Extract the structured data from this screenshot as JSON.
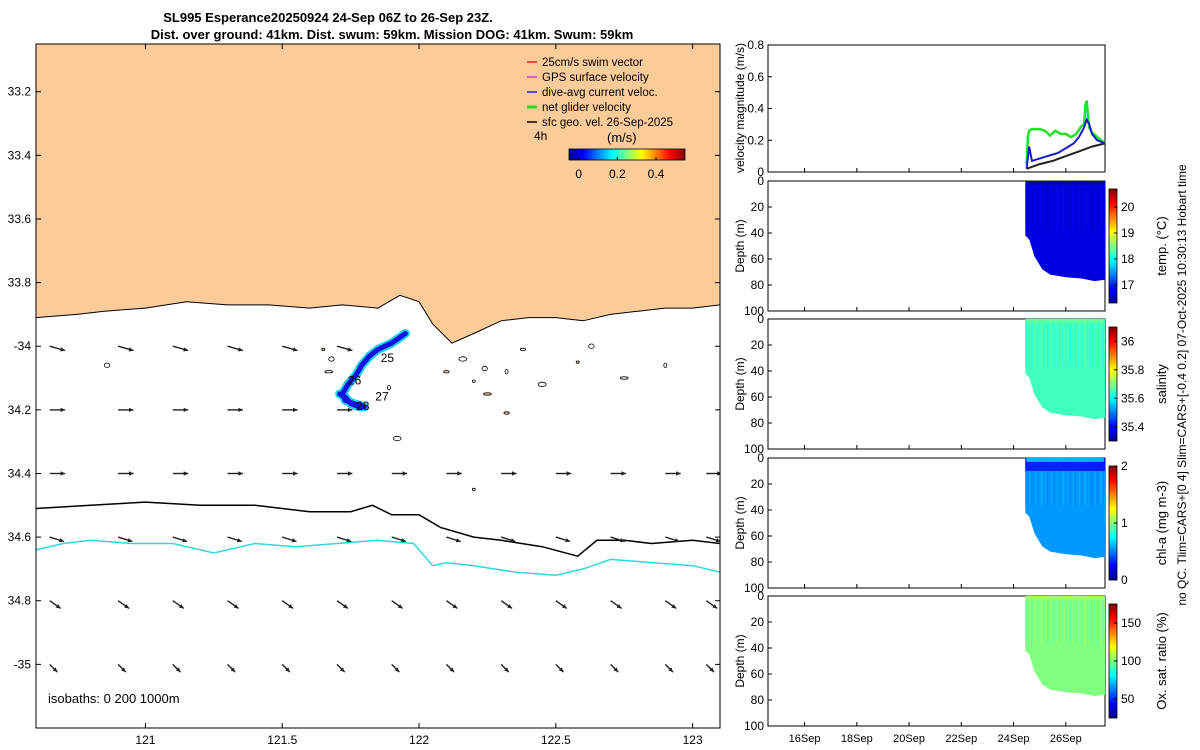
{
  "title": {
    "line1": "SL995 Esperance20250924 24-Sep 06Z to 26-Sep 23Z.",
    "line2": "Dist. over ground: 41km. Dist. swum: 59km. Mission DOG: 41km. Swum: 59km"
  },
  "side_note": "no QC. Tlim=CARS+[0 4] Slim=CARS+[-0.4 0.2] 07-Oct-2025 10:30:13 Hobart time",
  "colors": {
    "land": "#fbcb9a",
    "glider_track": "#1010e0",
    "isobath_200": "#000000",
    "isobath_1000": "#2fd8e0",
    "net_velocity": "#22e022",
    "dive_avg": "#1a1ad0",
    "sfc_geo": "#222222"
  },
  "chart_data": [
    {
      "type": "map",
      "xlim": [
        120.6,
        123.1
      ],
      "ylim": [
        -35.2,
        -33.05
      ],
      "xticks": [
        121,
        121.5,
        122,
        122.5,
        123
      ],
      "xtick_labels": [
        "121",
        "121.5",
        "122",
        "122.5",
        "123"
      ],
      "yticks": [
        -33.2,
        -33.4,
        -33.6,
        -33.8,
        -34,
        -34.2,
        -34.4,
        -34.6,
        -34.8,
        -35
      ],
      "ytick_labels": [
        "33.2",
        "33.4",
        "33.6",
        "33.8",
        "-34",
        "34.2",
        "34.4",
        "34.6",
        "34.8",
        "-35"
      ],
      "legend": {
        "placement": "top-right",
        "items": [
          {
            "label": "25cm/s swim vector",
            "color": "#e02020"
          },
          {
            "label": "GPS surface velocity",
            "color": "#e030e0"
          },
          {
            "label": "dive-avg current veloc.",
            "color": "#2020e0"
          },
          {
            "label": "net glider velocity",
            "color": "#20e020"
          },
          {
            "label": "sfc geo. vel. 26-Sep-2025",
            "color": "#000000"
          }
        ],
        "time_label": "4h"
      },
      "colorbar": {
        "title": "(m/s)",
        "range": [
          -0.05,
          0.55
        ],
        "ticks": [
          0,
          0.2,
          0.4
        ],
        "tick_labels": [
          "0",
          "0.2",
          "0.4"
        ]
      },
      "isobaths_label": "isobaths: 0   200  1000m",
      "track_day_labels": [
        {
          "text": "25",
          "lon": 121.86,
          "lat": -34.05
        },
        {
          "text": "26",
          "lon": 121.74,
          "lat": -34.12
        },
        {
          "text": "27",
          "lon": 121.84,
          "lat": -34.17
        },
        {
          "text": "28",
          "lon": 121.77,
          "lat": -34.2
        }
      ],
      "glider_track": [
        [
          121.95,
          -33.96
        ],
        [
          121.9,
          -33.99
        ],
        [
          121.85,
          -34.01
        ],
        [
          121.82,
          -34.03
        ],
        [
          121.79,
          -34.06
        ],
        [
          121.77,
          -34.09
        ],
        [
          121.74,
          -34.12
        ],
        [
          121.72,
          -34.15
        ],
        [
          121.73,
          -34.17
        ],
        [
          121.76,
          -34.18
        ],
        [
          121.8,
          -34.19
        ],
        [
          121.78,
          -34.19
        ],
        [
          121.75,
          -34.18
        ],
        [
          121.73,
          -34.16
        ],
        [
          121.71,
          -34.15
        ]
      ],
      "isobath_200": [
        [
          120.6,
          -34.51
        ],
        [
          120.8,
          -34.5
        ],
        [
          121,
          -34.49
        ],
        [
          121.2,
          -34.5
        ],
        [
          121.4,
          -34.5
        ],
        [
          121.6,
          -34.52
        ],
        [
          121.75,
          -34.52
        ],
        [
          121.83,
          -34.5
        ],
        [
          121.9,
          -34.53
        ],
        [
          122,
          -34.53
        ],
        [
          122.08,
          -34.57
        ],
        [
          122.2,
          -34.6
        ],
        [
          122.3,
          -34.61
        ],
        [
          122.45,
          -34.63
        ],
        [
          122.58,
          -34.66
        ],
        [
          122.65,
          -34.61
        ],
        [
          122.75,
          -34.61
        ],
        [
          122.85,
          -34.62
        ],
        [
          123,
          -34.61
        ],
        [
          123.1,
          -34.62
        ]
      ],
      "isobath_1000": [
        [
          120.6,
          -34.64
        ],
        [
          120.7,
          -34.62
        ],
        [
          120.8,
          -34.61
        ],
        [
          120.95,
          -34.62
        ],
        [
          121.1,
          -34.62
        ],
        [
          121.25,
          -34.65
        ],
        [
          121.4,
          -34.62
        ],
        [
          121.55,
          -34.63
        ],
        [
          121.7,
          -34.62
        ],
        [
          121.85,
          -34.61
        ],
        [
          121.98,
          -34.62
        ],
        [
          122.05,
          -34.69
        ],
        [
          122.1,
          -34.68
        ],
        [
          122.2,
          -34.69
        ],
        [
          122.35,
          -34.71
        ],
        [
          122.5,
          -34.72
        ],
        [
          122.6,
          -34.7
        ],
        [
          122.7,
          -34.67
        ],
        [
          122.85,
          -34.68
        ],
        [
          123,
          -34.69
        ],
        [
          123.1,
          -34.71
        ]
      ],
      "coastline": [
        [
          120.6,
          -33.91
        ],
        [
          120.75,
          -33.9
        ],
        [
          120.85,
          -33.89
        ],
        [
          121,
          -33.88
        ],
        [
          121.15,
          -33.86
        ],
        [
          121.3,
          -33.87
        ],
        [
          121.45,
          -33.87
        ],
        [
          121.6,
          -33.88
        ],
        [
          121.72,
          -33.87
        ],
        [
          121.85,
          -33.88
        ],
        [
          121.93,
          -33.84
        ],
        [
          122,
          -33.86
        ],
        [
          122.05,
          -33.93
        ],
        [
          122.12,
          -33.99
        ],
        [
          122.2,
          -33.96
        ],
        [
          122.3,
          -33.92
        ],
        [
          122.4,
          -33.91
        ],
        [
          122.5,
          -33.91
        ],
        [
          122.6,
          -33.92
        ],
        [
          122.7,
          -33.9
        ],
        [
          122.8,
          -33.89
        ],
        [
          122.9,
          -33.88
        ],
        [
          123,
          -33.88
        ],
        [
          123.1,
          -33.87
        ]
      ],
      "vector_rows": [
        {
          "lat": -34.0,
          "u": 0.14,
          "v": -0.04,
          "lons": [
            120.65,
            120.9,
            121.1,
            121.3,
            121.5,
            121.7
          ]
        },
        {
          "lat": -34.2,
          "u": 0.14,
          "v": 0.0,
          "lons": [
            120.65,
            120.9,
            121.1,
            121.3,
            121.5,
            121.7
          ]
        },
        {
          "lat": -34.4,
          "u": 0.14,
          "v": 0.0,
          "lons": [
            120.65,
            120.9,
            121.1,
            121.3,
            121.5,
            121.7,
            121.9,
            122.1,
            122.3,
            122.5,
            122.7,
            122.9,
            123.05
          ]
        },
        {
          "lat": -34.6,
          "u": 0.13,
          "v": -0.04,
          "lons": [
            120.65,
            120.9,
            121.1,
            121.3,
            121.5,
            121.7,
            121.9,
            122.1,
            122.3,
            122.5,
            122.7,
            122.9,
            123.05
          ]
        },
        {
          "lat": -34.8,
          "u": 0.1,
          "v": -0.07,
          "lons": [
            120.65,
            120.9,
            121.1,
            121.3,
            121.5,
            121.7,
            121.9,
            122.1,
            122.3,
            122.5,
            122.7,
            122.9,
            123.05
          ]
        },
        {
          "lat": -35.0,
          "u": 0.07,
          "v": -0.07,
          "lons": [
            120.65,
            120.9,
            121.1,
            121.3,
            121.5,
            121.7,
            121.9,
            122.1,
            122.3,
            122.5,
            122.7,
            122.9,
            123.05
          ]
        }
      ]
    },
    {
      "type": "line",
      "ylabel": "velocity magnitude (m/s)",
      "xlim": [
        14.6,
        27.5
      ],
      "ylim": [
        0,
        0.8
      ],
      "yticks": [
        0,
        0.2,
        0.4,
        0.6,
        0.8
      ],
      "ytick_labels": [
        "0",
        "0.2",
        "0.4",
        "0.6",
        "0.8"
      ],
      "series": [
        {
          "color": "#22e022",
          "x": [
            24.5,
            24.55,
            24.6,
            24.7,
            24.8,
            25,
            25.2,
            25.4,
            25.6,
            25.8,
            26,
            26.2,
            26.4,
            26.6,
            26.7,
            26.75,
            26.8,
            26.85,
            26.9,
            27,
            27.2,
            27.5
          ],
          "y": [
            0.05,
            0.22,
            0.26,
            0.27,
            0.27,
            0.27,
            0.26,
            0.23,
            0.26,
            0.24,
            0.24,
            0.22,
            0.24,
            0.29,
            0.3,
            0.42,
            0.45,
            0.35,
            0.28,
            0.25,
            0.22,
            0.18
          ]
        },
        {
          "color": "#1a1ad0",
          "x": [
            24.5,
            24.6,
            24.7,
            24.9,
            25.1,
            25.3,
            25.5,
            25.7,
            25.9,
            26.1,
            26.3,
            26.5,
            26.7,
            26.8,
            26.9,
            27,
            27.2,
            27.5
          ],
          "y": [
            0.02,
            0.16,
            0.07,
            0.08,
            0.09,
            0.1,
            0.11,
            0.12,
            0.14,
            0.16,
            0.18,
            0.22,
            0.28,
            0.33,
            0.3,
            0.24,
            0.2,
            0.18
          ]
        },
        {
          "color": "#222222",
          "x": [
            24.5,
            25,
            25.5,
            26,
            26.5,
            27,
            27.5
          ],
          "y": [
            0.02,
            0.05,
            0.07,
            0.1,
            0.13,
            0.16,
            0.18
          ]
        }
      ]
    },
    {
      "type": "heatmap",
      "ylabel": "Depth (m)",
      "colorbar_label": "temp. (°C)",
      "range": [
        16.3,
        20.7
      ],
      "cticks": [
        17,
        18,
        19,
        20
      ],
      "ctick_labels": [
        "17",
        "18",
        "19",
        "20"
      ],
      "typical_value": 16.7,
      "yticks": [
        0,
        20,
        40,
        60,
        80,
        100
      ],
      "ytick_labels": [
        "0",
        "20",
        "40",
        "60",
        "80",
        "100"
      ]
    },
    {
      "type": "heatmap",
      "ylabel": "Depth (m)",
      "colorbar_label": "salinity",
      "range": [
        35.3,
        36.1
      ],
      "cticks": [
        35.4,
        35.6,
        35.8,
        36
      ],
      "ctick_labels": [
        "35.4",
        "35.6",
        "35.8",
        "36"
      ],
      "typical_value": 35.65,
      "yticks": [
        0,
        20,
        40,
        60,
        80,
        100
      ],
      "ytick_labels": [
        "0",
        "20",
        "40",
        "60",
        "80",
        "100"
      ]
    },
    {
      "type": "heatmap",
      "ylabel": "Depth (m)",
      "colorbar_label": "chl-a (mg m-3)",
      "range": [
        0,
        2
      ],
      "cticks": [
        0,
        1,
        2
      ],
      "ctick_labels": [
        "0",
        "1",
        "2"
      ],
      "typical_value": 0.55,
      "yticks": [
        0,
        20,
        40,
        60,
        80,
        100
      ],
      "ytick_labels": [
        "0",
        "20",
        "40",
        "60",
        "80",
        "100"
      ]
    },
    {
      "type": "heatmap",
      "ylabel": "Depth (m)",
      "colorbar_label": "Ox. sat. ratio (%)",
      "range": [
        25,
        175
      ],
      "cticks": [
        50,
        100,
        150
      ],
      "ctick_labels": [
        "50",
        "100",
        "150"
      ],
      "typical_value": 100,
      "xlim": [
        14.6,
        27.5
      ],
      "xticks": [
        16,
        18,
        20,
        22,
        24,
        26
      ],
      "xtick_labels": [
        "16Sep",
        "18Sep",
        "20Sep",
        "22Sep",
        "24Sep",
        "26Sep"
      ],
      "yticks": [
        0,
        20,
        40,
        60,
        80,
        100
      ],
      "ytick_labels": [
        "0",
        "20",
        "40",
        "60",
        "80",
        "100"
      ]
    }
  ]
}
